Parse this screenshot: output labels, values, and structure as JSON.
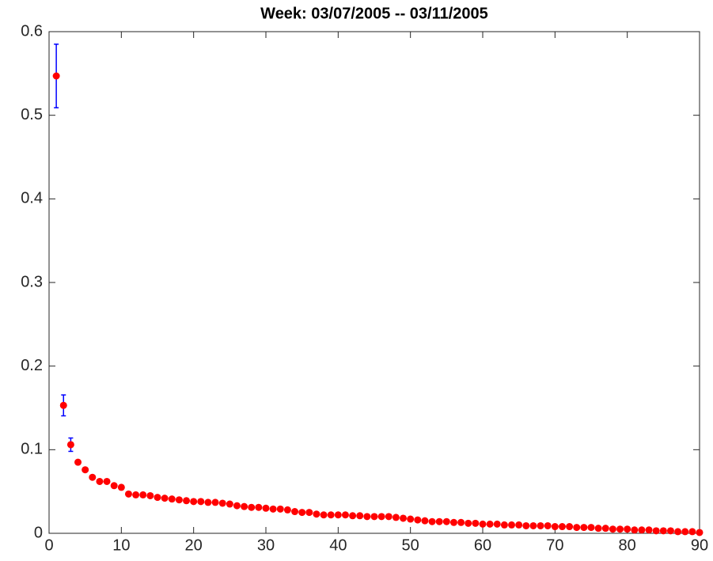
{
  "chart_data": {
    "type": "errorbar-scatter",
    "title": "Week: 03/07/2005 -- 03/11/2005",
    "x": [
      1,
      2,
      3,
      4,
      5,
      6,
      7,
      8,
      9,
      10,
      11,
      12,
      13,
      14,
      15,
      16,
      17,
      18,
      19,
      20,
      21,
      22,
      23,
      24,
      25,
      26,
      27,
      28,
      29,
      30,
      31,
      32,
      33,
      34,
      35,
      36,
      37,
      38,
      39,
      40,
      41,
      42,
      43,
      44,
      45,
      46,
      47,
      48,
      49,
      50,
      51,
      52,
      53,
      54,
      55,
      56,
      57,
      58,
      59,
      60,
      61,
      62,
      63,
      64,
      65,
      66,
      67,
      68,
      69,
      70,
      71,
      72,
      73,
      74,
      75,
      76,
      77,
      78,
      79,
      80,
      81,
      82,
      83,
      84,
      85,
      86,
      87,
      88,
      89,
      90
    ],
    "values": [
      0.547,
      0.153,
      0.106,
      0.085,
      0.076,
      0.067,
      0.062,
      0.062,
      0.057,
      0.055,
      0.047,
      0.046,
      0.046,
      0.045,
      0.043,
      0.042,
      0.041,
      0.04,
      0.039,
      0.038,
      0.038,
      0.037,
      0.037,
      0.036,
      0.035,
      0.033,
      0.032,
      0.031,
      0.031,
      0.03,
      0.029,
      0.029,
      0.028,
      0.026,
      0.025,
      0.025,
      0.023,
      0.022,
      0.022,
      0.022,
      0.022,
      0.021,
      0.021,
      0.02,
      0.02,
      0.02,
      0.02,
      0.019,
      0.018,
      0.017,
      0.016,
      0.015,
      0.014,
      0.014,
      0.014,
      0.013,
      0.013,
      0.012,
      0.012,
      0.011,
      0.011,
      0.011,
      0.01,
      0.01,
      0.01,
      0.009,
      0.009,
      0.009,
      0.009,
      0.008,
      0.008,
      0.008,
      0.007,
      0.007,
      0.007,
      0.006,
      0.006,
      0.005,
      0.005,
      0.005,
      0.004,
      0.004,
      0.004,
      0.003,
      0.003,
      0.003,
      0.002,
      0.002,
      0.002,
      0.001
    ],
    "errors": [
      0.038,
      0.0125,
      0.008,
      0.001,
      0.001,
      0.001,
      0.001,
      0.001,
      0.001,
      0.001,
      0.001,
      0.001,
      0.001,
      0.001,
      0.001,
      0.001,
      0.001,
      0.001,
      0.001,
      0.001,
      0.001,
      0.001,
      0.001,
      0.001,
      0.001,
      0.001,
      0.001,
      0.001,
      0.001,
      0.001,
      0.001,
      0.001,
      0.001,
      0.001,
      0.001,
      0.001,
      0.001,
      0.001,
      0.001,
      0.001,
      0.001,
      0.001,
      0.001,
      0.001,
      0.001,
      0.001,
      0.001,
      0.001,
      0.001,
      0.001,
      0.001,
      0.001,
      0.001,
      0.001,
      0.001,
      0.001,
      0.001,
      0.001,
      0.001,
      0.001,
      0.001,
      0.001,
      0.001,
      0.001,
      0.001,
      0.001,
      0.001,
      0.001,
      0.001,
      0.001,
      0.001,
      0.001,
      0.001,
      0.001,
      0.001,
      0.001,
      0.001,
      0.001,
      0.001,
      0.001,
      0.001,
      0.001,
      0.001,
      0.001,
      0.001,
      0.001,
      0.001,
      0.001,
      0.001,
      0.001
    ],
    "color": "#ff0000",
    "error_color": "#0000ff",
    "xlim": [
      0,
      90
    ],
    "ylim": [
      0,
      0.6
    ],
    "xticks": [
      0,
      10,
      20,
      30,
      40,
      50,
      60,
      70,
      80,
      90
    ],
    "yticks": [
      0,
      0.1,
      0.2,
      0.3,
      0.4,
      0.5,
      0.6
    ]
  }
}
